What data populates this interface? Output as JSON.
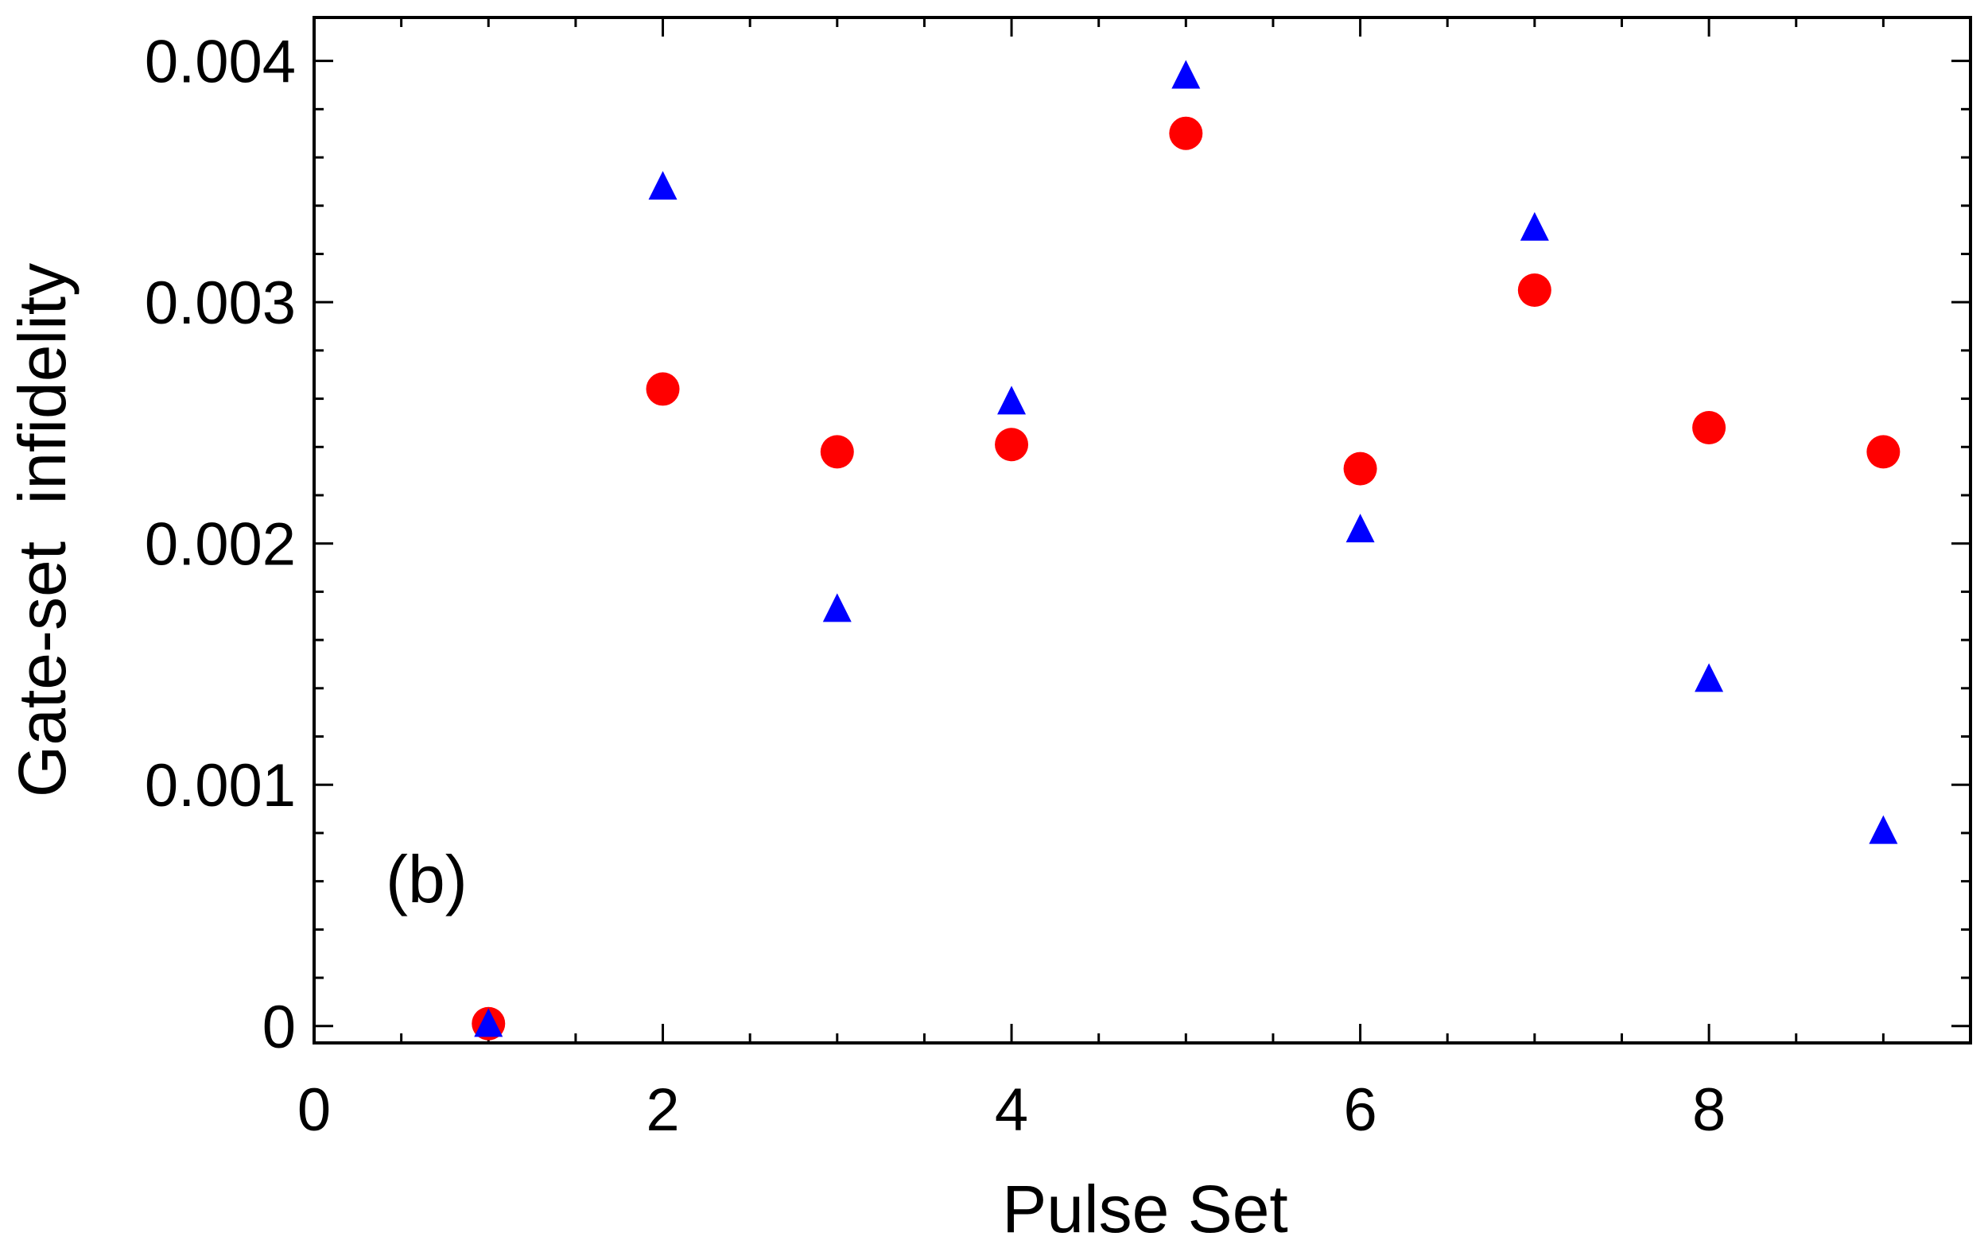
{
  "chart_data": {
    "type": "scatter",
    "title": "",
    "xlabel": "Pulse Set",
    "ylabel": "Gate-set  infidelity",
    "xlim": [
      0,
      9.5
    ],
    "ylim": [
      -7e-05,
      0.00418
    ],
    "xticks": [
      0,
      2,
      4,
      6,
      8
    ],
    "xtick_labels": [
      "0",
      "2",
      "4",
      "6",
      "8"
    ],
    "yticks": [
      0,
      0.001,
      0.002,
      0.003,
      0.004
    ],
    "ytick_labels": [
      "0",
      "0.001",
      "0.002",
      "0.003",
      "0.004"
    ],
    "annotation": "(b)",
    "grid": false,
    "legend": "none",
    "series": [
      {
        "marker": "circle",
        "color": "#ff0000",
        "x": [
          1,
          2,
          3,
          4,
          5,
          6,
          7,
          8,
          9
        ],
        "y": [
          1e-05,
          0.00264,
          0.00238,
          0.00241,
          0.0037,
          0.00231,
          0.00305,
          0.00248,
          0.00238
        ]
      },
      {
        "marker": "triangle",
        "color": "#0000ff",
        "x": [
          1,
          2,
          3,
          4,
          5,
          6,
          7,
          8,
          9
        ],
        "y": [
          0.0,
          0.00347,
          0.00172,
          0.00258,
          0.00393,
          0.00205,
          0.0033,
          0.00143,
          0.0008
        ]
      }
    ]
  }
}
